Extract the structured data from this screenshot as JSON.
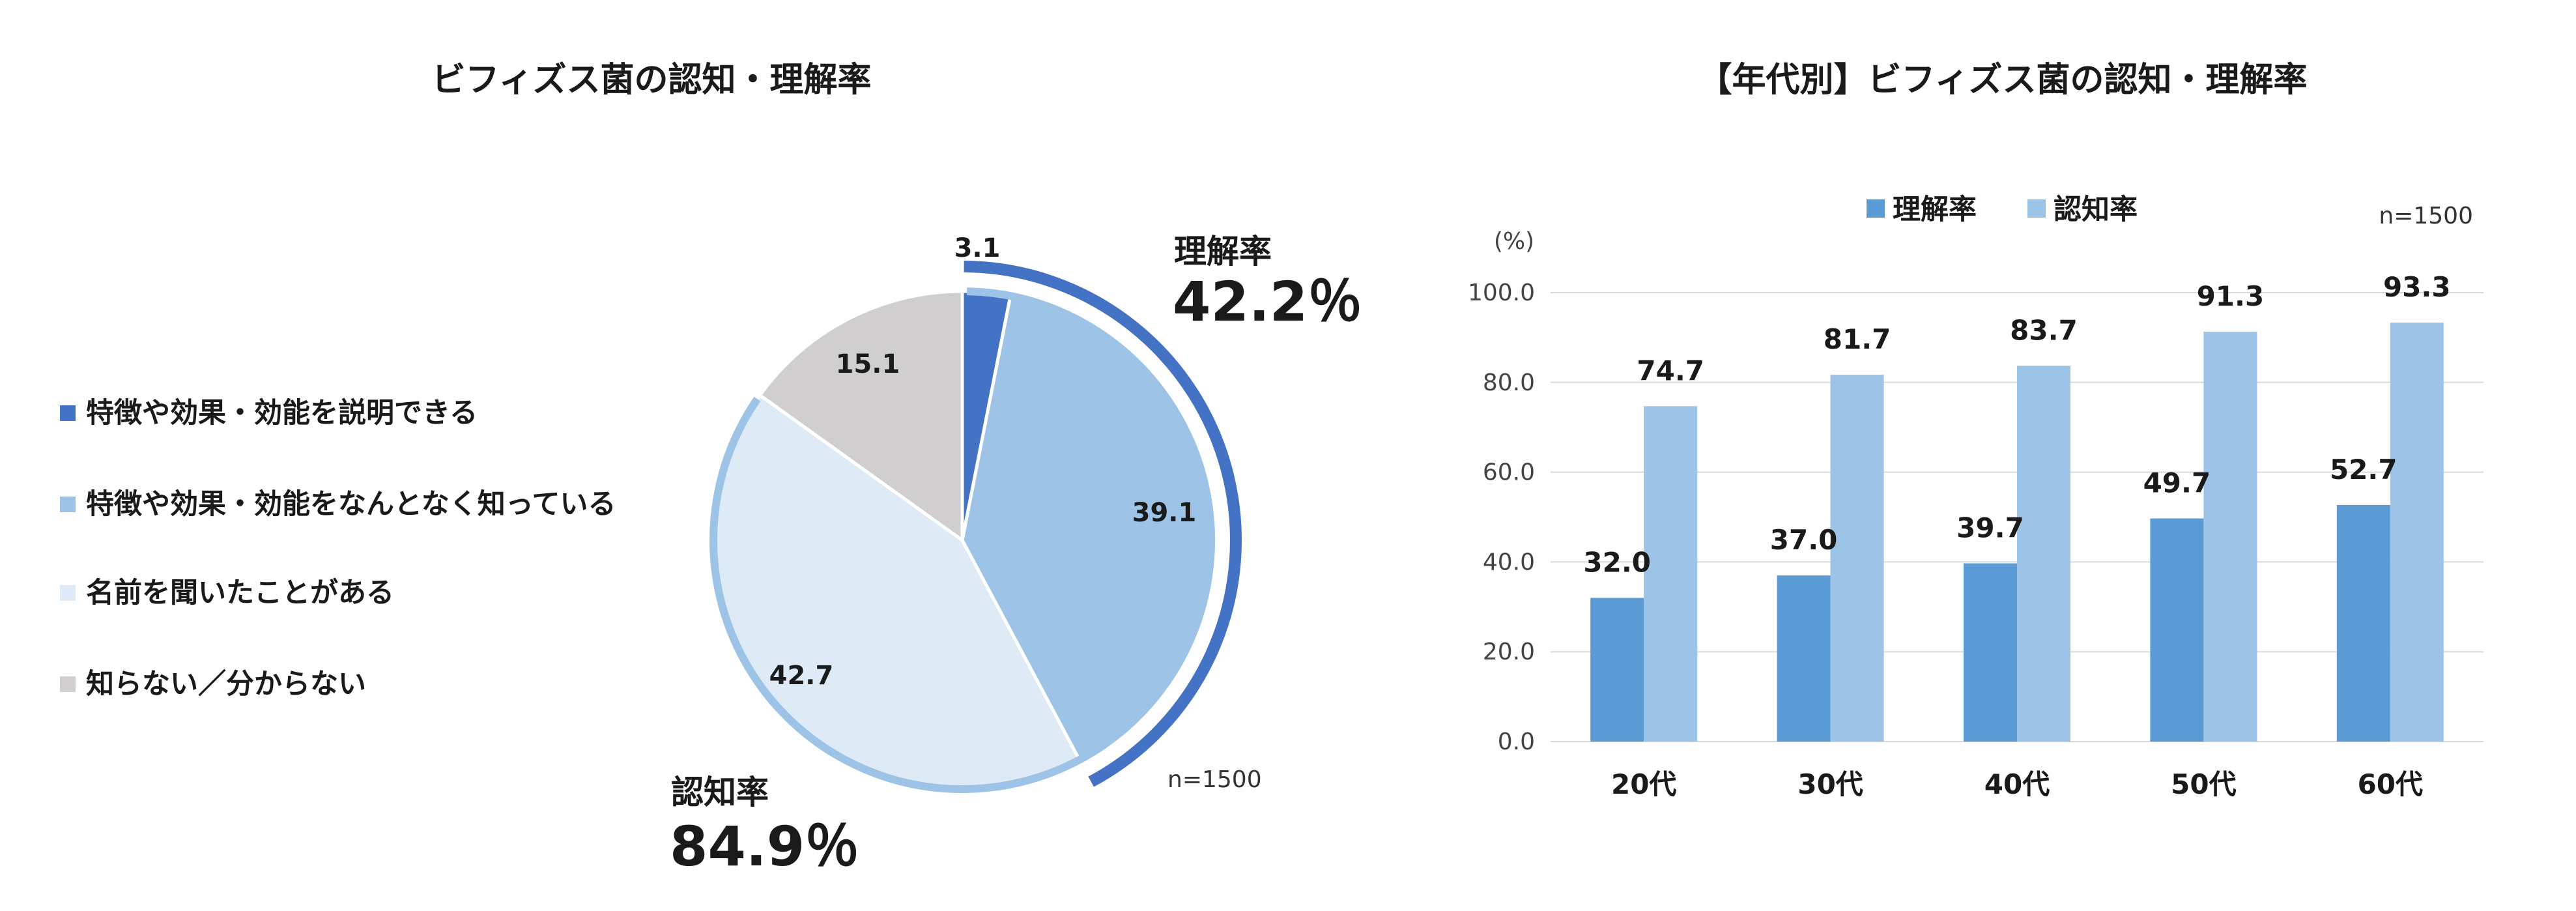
{
  "chart_data": [
    {
      "type": "pie",
      "title": "ビフィズス菌の認知・理解率",
      "note": "n=1500",
      "slices": [
        {
          "label": "特徴や効果・効能を説明できる",
          "value": 3.1,
          "value_label": "3.1",
          "color": "#4472C4"
        },
        {
          "label": "特徴や効果・効能をなんとなく知っている",
          "value": 39.1,
          "value_label": "39.1",
          "color": "#9DC3E6"
        },
        {
          "label": "名前を聞いたことがある",
          "value": 42.7,
          "value_label": "42.7",
          "color": "#DEEBF7"
        },
        {
          "label": "知らない／分からない",
          "value": 15.1,
          "value_label": "15.1",
          "color": "#D0CECE"
        }
      ],
      "callouts": [
        {
          "name": "理解率",
          "value": 42.2,
          "text": "42.2％",
          "color": "#4472C4"
        },
        {
          "name": "認知率",
          "value": 84.9,
          "text": "84.9％",
          "color": "#9DC3E6"
        }
      ],
      "legend_position": "left"
    },
    {
      "type": "bar",
      "title": "【年代別】ビフィズス菌の認知・理解率",
      "note": "n=1500",
      "ylabel": "(%)",
      "ylim": [
        0,
        100
      ],
      "yticks": [
        "0.0",
        "20.0",
        "40.0",
        "60.0",
        "80.0",
        "100.0"
      ],
      "grid": true,
      "legend_position": "top",
      "categories": [
        "20代",
        "30代",
        "40代",
        "50代",
        "60代"
      ],
      "series": [
        {
          "name": "理解率",
          "color": "#5B9BD5",
          "values": [
            32.0,
            37.0,
            39.7,
            49.7,
            52.7
          ],
          "labels": [
            "32.0",
            "37.0",
            "39.7",
            "49.7",
            "52.7"
          ]
        },
        {
          "name": "認知率",
          "color": "#9DC3E6",
          "values": [
            74.7,
            81.7,
            83.7,
            91.3,
            93.3
          ],
          "labels": [
            "74.7",
            "81.7",
            "83.7",
            "91.3",
            "93.3"
          ]
        }
      ]
    }
  ]
}
